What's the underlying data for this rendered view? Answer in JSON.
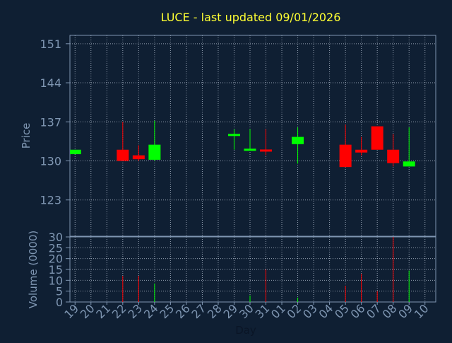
{
  "chart_data": {
    "type": "candlestick",
    "title": "LUCE - last updated 09/01/2026",
    "xlabel": "Day",
    "price_panel": {
      "ylabel": "Price",
      "ylim": [
        116.5,
        152.5
      ],
      "yticks": [
        123,
        130,
        137,
        144,
        151
      ]
    },
    "volume_panel": {
      "ylabel": "Volume (0000)",
      "ylim": [
        0,
        30
      ],
      "yticks": [
        0,
        5,
        10,
        15,
        20,
        25,
        30
      ]
    },
    "x_ticks": [
      "19",
      "20",
      "21",
      "22",
      "23",
      "24",
      "25",
      "26",
      "27",
      "28",
      "29",
      "30",
      "31",
      "01",
      "02",
      "03",
      "04",
      "05",
      "06",
      "07",
      "08",
      "09",
      "10"
    ],
    "grid": true,
    "colors": {
      "background": "#0f1f33",
      "axis": "#7f96b2",
      "grid": "#b4c0d0",
      "title": "#ffff33",
      "up": "#00ff00",
      "down": "#ff0000"
    },
    "candles": [
      {
        "day": "19",
        "open": 131.2,
        "high": 132.0,
        "low": 131.2,
        "close": 132.0,
        "volume": 0
      },
      {
        "day": "22",
        "open": 132.0,
        "high": 137.0,
        "low": 130.0,
        "close": 130.0,
        "volume": 12
      },
      {
        "day": "23",
        "open": 131.0,
        "high": 132.8,
        "low": 130.0,
        "close": 130.3,
        "volume": 12
      },
      {
        "day": "24",
        "open": 130.2,
        "high": 137.2,
        "low": 130.0,
        "close": 132.9,
        "volume": 8.5
      },
      {
        "day": "29",
        "open": 134.5,
        "high": 135.7,
        "low": 132.0,
        "close": 134.8,
        "volume": 0
      },
      {
        "day": "30",
        "open": 132.0,
        "high": 135.7,
        "low": 132.0,
        "close": 132.0,
        "volume": 3
      },
      {
        "day": "31",
        "open": 132.0,
        "high": 135.7,
        "low": 131.0,
        "close": 131.7,
        "volume": 15
      },
      {
        "day": "02",
        "open": 133.0,
        "high": 136.0,
        "low": 129.5,
        "close": 134.3,
        "volume": 2
      },
      {
        "day": "05",
        "open": 132.9,
        "high": 136.5,
        "low": 128.9,
        "close": 128.9,
        "volume": 7.5
      },
      {
        "day": "06",
        "open": 132.0,
        "high": 134.3,
        "low": 131.0,
        "close": 131.5,
        "volume": 13
      },
      {
        "day": "07",
        "open": 136.2,
        "high": 136.2,
        "low": 132.0,
        "close": 132.0,
        "volume": 5
      },
      {
        "day": "08",
        "open": 132.0,
        "high": 134.8,
        "low": 129.0,
        "close": 129.6,
        "volume": 30
      },
      {
        "day": "09",
        "open": 129.0,
        "high": 136.0,
        "low": 129.0,
        "close": 129.9,
        "volume": 14.5
      }
    ]
  }
}
